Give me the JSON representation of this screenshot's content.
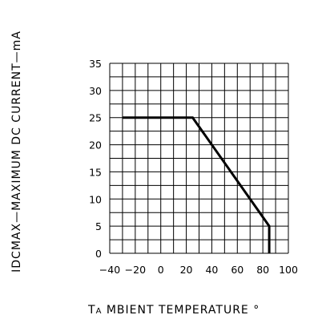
{
  "chart_data": {
    "type": "line",
    "ylabel": "IDCMAX—MAXIMUM  DC  CURRENT—mA",
    "xlabel_lead": "T",
    "xlabel_sub": "A",
    "xlabel_rest": " MBIENT  TEMPERATURE  °",
    "x_ticks": [
      "−40",
      "−20",
      "0",
      "20",
      "40",
      "60",
      "80",
      "100"
    ],
    "y_ticks": [
      "0",
      "5",
      "10",
      "15",
      "20",
      "25",
      "30",
      "35"
    ],
    "xlim": [
      -40,
      100
    ],
    "ylim": [
      0,
      35
    ],
    "grid": true,
    "series": [
      {
        "x": [
          -30,
          25,
          85,
          85
        ],
        "y": [
          25,
          25,
          5,
          0
        ]
      }
    ],
    "line_color": "#000000",
    "grid_color": "#000000"
  }
}
